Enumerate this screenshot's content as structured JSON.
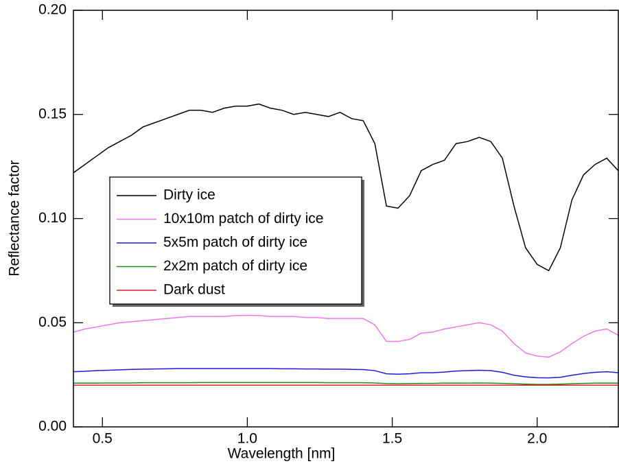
{
  "chart_data": {
    "type": "line",
    "xlabel": "Wavelength [nm]",
    "ylabel": "Reflectance factor",
    "x": [
      0.4,
      0.44,
      0.48,
      0.52,
      0.56,
      0.6,
      0.64,
      0.68,
      0.72,
      0.76,
      0.8,
      0.84,
      0.88,
      0.92,
      0.96,
      1.0,
      1.04,
      1.08,
      1.12,
      1.16,
      1.2,
      1.24,
      1.28,
      1.32,
      1.36,
      1.4,
      1.44,
      1.48,
      1.52,
      1.56,
      1.6,
      1.64,
      1.68,
      1.72,
      1.76,
      1.8,
      1.84,
      1.88,
      1.92,
      1.96,
      2.0,
      2.04,
      2.08,
      2.12,
      2.16,
      2.2,
      2.24,
      2.28
    ],
    "series": [
      {
        "name": "Dirty ice",
        "color": "#000000",
        "values": [
          0.122,
          0.126,
          0.13,
          0.134,
          0.137,
          0.14,
          0.144,
          0.146,
          0.148,
          0.15,
          0.152,
          0.152,
          0.151,
          0.153,
          0.154,
          0.154,
          0.155,
          0.153,
          0.152,
          0.15,
          0.151,
          0.15,
          0.149,
          0.151,
          0.148,
          0.147,
          0.136,
          0.106,
          0.105,
          0.111,
          0.123,
          0.126,
          0.128,
          0.136,
          0.137,
          0.139,
          0.137,
          0.129,
          0.106,
          0.086,
          0.078,
          0.075,
          0.086,
          0.109,
          0.121,
          0.126,
          0.129,
          0.123
        ]
      },
      {
        "name": "10x10m patch of dirty ice",
        "color": "#ee77ee",
        "values": [
          0.0455,
          0.047,
          0.048,
          0.049,
          0.05,
          0.0505,
          0.051,
          0.0515,
          0.052,
          0.0525,
          0.053,
          0.053,
          0.053,
          0.053,
          0.0535,
          0.0535,
          0.0535,
          0.053,
          0.053,
          0.053,
          0.0525,
          0.0525,
          0.052,
          0.052,
          0.052,
          0.052,
          0.049,
          0.041,
          0.041,
          0.042,
          0.045,
          0.0455,
          0.047,
          0.048,
          0.049,
          0.05,
          0.049,
          0.046,
          0.04,
          0.0355,
          0.034,
          0.0335,
          0.036,
          0.04,
          0.0435,
          0.046,
          0.047,
          0.044
        ]
      },
      {
        "name": "5x5m patch of dirty ice",
        "color": "#1a1adc",
        "values": [
          0.0265,
          0.0267,
          0.027,
          0.0272,
          0.0274,
          0.0276,
          0.0277,
          0.0278,
          0.0279,
          0.028,
          0.028,
          0.028,
          0.028,
          0.028,
          0.028,
          0.028,
          0.028,
          0.028,
          0.0279,
          0.0279,
          0.0278,
          0.0278,
          0.0277,
          0.0277,
          0.0276,
          0.0275,
          0.027,
          0.0255,
          0.0253,
          0.0255,
          0.026,
          0.026,
          0.0263,
          0.0268,
          0.027,
          0.0272,
          0.027,
          0.0262,
          0.0248,
          0.024,
          0.0236,
          0.0235,
          0.0238,
          0.0248,
          0.0256,
          0.0262,
          0.0265,
          0.026
        ]
      },
      {
        "name": "2x2m patch of dirty ice",
        "color": "#1e8a1e",
        "values": [
          0.021,
          0.021,
          0.021,
          0.0211,
          0.0211,
          0.0211,
          0.0212,
          0.0212,
          0.0212,
          0.0212,
          0.0212,
          0.0213,
          0.0213,
          0.0213,
          0.0213,
          0.0213,
          0.0213,
          0.0213,
          0.0213,
          0.0213,
          0.0213,
          0.0213,
          0.0212,
          0.0212,
          0.0212,
          0.0212,
          0.0211,
          0.0208,
          0.0207,
          0.0208,
          0.0209,
          0.0209,
          0.021,
          0.021,
          0.021,
          0.0211,
          0.021,
          0.0209,
          0.0207,
          0.0205,
          0.0204,
          0.0204,
          0.0205,
          0.0207,
          0.0209,
          0.021,
          0.021,
          0.021
        ]
      },
      {
        "name": "Dark dust",
        "color": "#e02020",
        "values": [
          0.02,
          0.02,
          0.02,
          0.02,
          0.02,
          0.02,
          0.02,
          0.02,
          0.02,
          0.02,
          0.02,
          0.02,
          0.02,
          0.02,
          0.02,
          0.02,
          0.02,
          0.02,
          0.02,
          0.02,
          0.02,
          0.02,
          0.02,
          0.02,
          0.02,
          0.02,
          0.02,
          0.02,
          0.02,
          0.02,
          0.02,
          0.02,
          0.02,
          0.02,
          0.02,
          0.02,
          0.02,
          0.02,
          0.02,
          0.02,
          0.02,
          0.02,
          0.02,
          0.02,
          0.02,
          0.02,
          0.02,
          0.02
        ]
      }
    ],
    "xlim": [
      0.4,
      2.28
    ],
    "ylim": [
      0,
      0.2
    ],
    "xticks": [
      {
        "value": 0.5,
        "label": "0.5"
      },
      {
        "value": 1.0,
        "label": "1.0"
      },
      {
        "value": 1.5,
        "label": "1.5"
      },
      {
        "value": 2.0,
        "label": "2.0"
      }
    ],
    "yticks": [
      {
        "value": 0,
        "label": "0.00"
      },
      {
        "value": 0.05,
        "label": "0.05"
      },
      {
        "value": 0.1,
        "label": "0.10"
      },
      {
        "value": 0.15,
        "label": "0.15"
      },
      {
        "value": 0.2,
        "label": "0.20"
      }
    ],
    "grid": false
  }
}
